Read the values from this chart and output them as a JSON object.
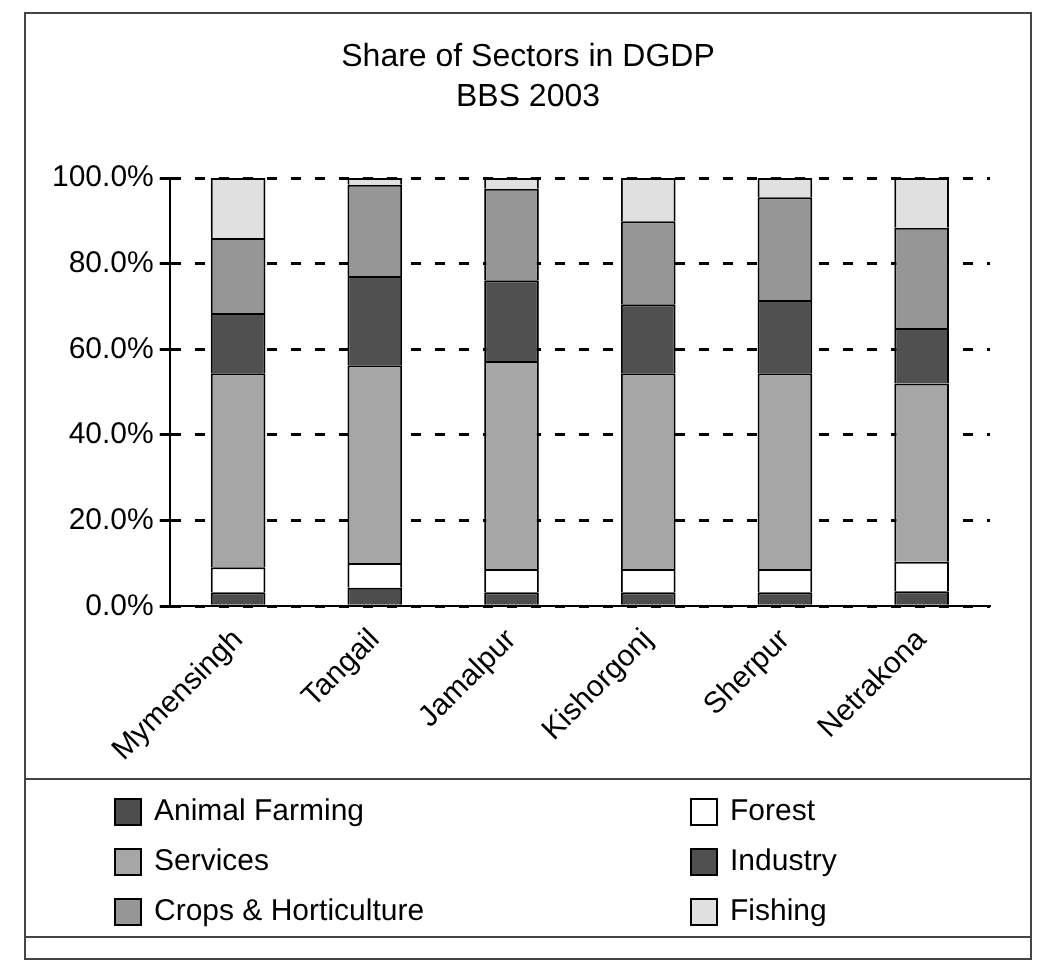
{
  "chart_data": {
    "type": "bar",
    "title": "Share of Sectors in DGDP",
    "subtitle": "BBS 2003",
    "stacked": true,
    "categories": [
      "Mymensingh",
      "Tangail",
      "Jamalpur",
      "Kishorgonj",
      "Sherpur",
      "Netrakona"
    ],
    "series": [
      {
        "name": "Animal Farming",
        "color": "#4d4d4d",
        "values": [
          3.3,
          4.3,
          3.3,
          3.3,
          3.3,
          3.5
        ]
      },
      {
        "name": "Forest",
        "color": "#ffffff",
        "values": [
          5.8,
          5.8,
          5.4,
          5.4,
          5.4,
          6.9
        ]
      },
      {
        "name": "Services",
        "color": "#a6a6a6",
        "values": [
          45.3,
          46.2,
          48.6,
          45.7,
          45.7,
          41.6
        ]
      },
      {
        "name": "Industry",
        "color": "#505050",
        "values": [
          14.1,
          20.8,
          18.8,
          16.1,
          17.1,
          13
        ]
      },
      {
        "name": "Crops & Horticulture",
        "color": "#969696",
        "values": [
          17.5,
          21.3,
          21.4,
          19.4,
          24,
          23.4
        ]
      },
      {
        "name": "Fishing",
        "color": "#e0e0e0",
        "values": [
          14,
          1.6,
          2.5,
          10.1,
          4.5,
          11.6
        ]
      }
    ],
    "ylim": [
      0,
      100
    ],
    "yticks": [
      {
        "value": 0,
        "label": "0.0%"
      },
      {
        "value": 20,
        "label": "20.0%"
      },
      {
        "value": 40,
        "label": "40.0%"
      },
      {
        "value": 60,
        "label": "60.0%"
      },
      {
        "value": 80,
        "label": "80.0%"
      },
      {
        "value": 100,
        "label": "100.0%"
      }
    ],
    "grid": "y",
    "legend": "bottom"
  }
}
